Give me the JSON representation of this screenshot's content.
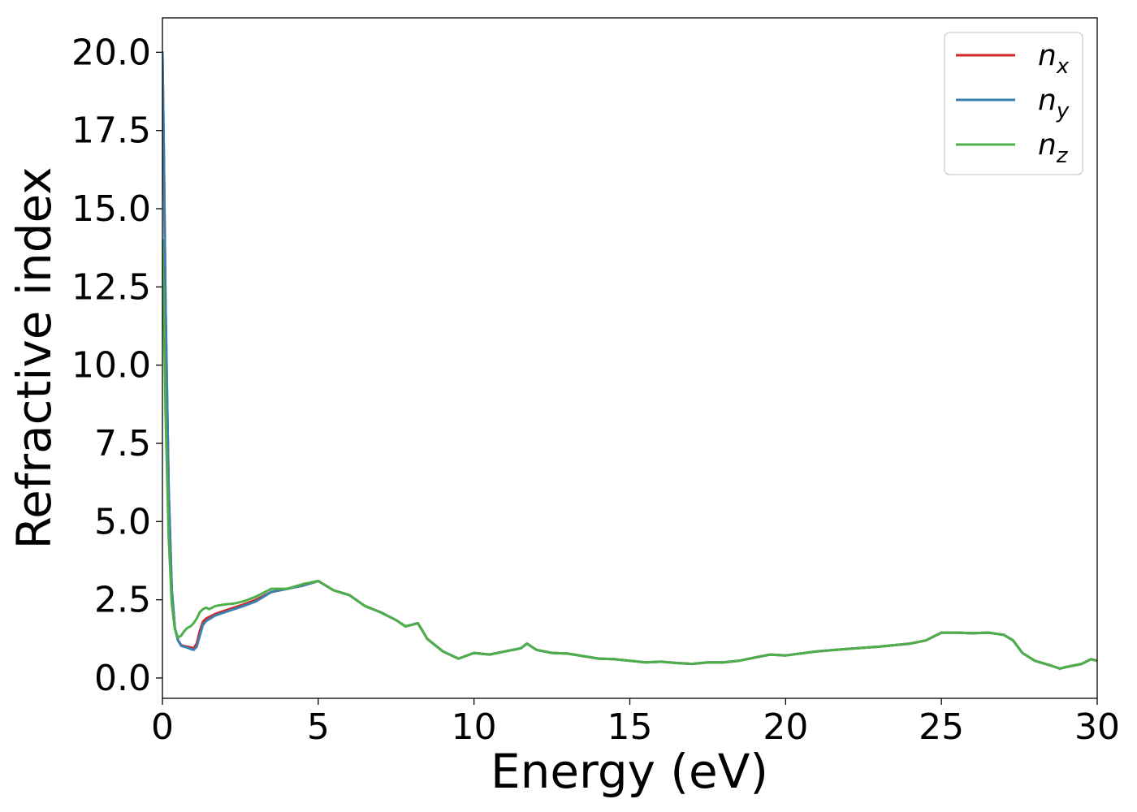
{
  "chart_data": {
    "type": "line",
    "xlabel": "Energy (eV)",
    "ylabel": "Refractive index",
    "xlim": [
      0,
      30
    ],
    "ylim": [
      -0.65,
      21.1
    ],
    "xticks": [
      0,
      5,
      10,
      15,
      20,
      25,
      30
    ],
    "xtick_labels": [
      "0",
      "5",
      "10",
      "15",
      "20",
      "25",
      "30"
    ],
    "yticks": [
      0,
      2.5,
      5,
      7.5,
      10,
      12.5,
      15,
      17.5,
      20
    ],
    "ytick_labels": [
      "0.0",
      "2.5",
      "5.0",
      "7.5",
      "10.0",
      "12.5",
      "15.0",
      "17.5",
      "20.0"
    ],
    "grid": false,
    "legend_position": "top-right",
    "series": [
      {
        "name": "n_x",
        "legend_base": "n",
        "legend_sub": "x",
        "color": "#d62728",
        "x": [
          0.0,
          0.05,
          0.1,
          0.2,
          0.3,
          0.4,
          0.5,
          0.6,
          0.7,
          0.8,
          0.9,
          1.0,
          1.1,
          1.2,
          1.3,
          1.4,
          1.5,
          1.7,
          2.0,
          2.3,
          2.6,
          3.0,
          3.5,
          4.0,
          4.5,
          5.0,
          5.5,
          6.0,
          6.5,
          7.0,
          7.5,
          7.8,
          8.2,
          8.5,
          9.0,
          9.5,
          10.0,
          10.5,
          11.0,
          11.5,
          11.7,
          12.0,
          12.5,
          13.0,
          13.5,
          14.0,
          14.5,
          15.0,
          15.5,
          16.0,
          16.5,
          17.0,
          17.5,
          18.0,
          18.5,
          19.0,
          19.5,
          20.0,
          21.0,
          22.0,
          23.0,
          24.0,
          24.5,
          25.0,
          25.5,
          26.0,
          26.5,
          27.0,
          27.3,
          27.6,
          28.0,
          28.5,
          28.8,
          29.0,
          29.5,
          29.8,
          30.0
        ],
        "y": [
          20.0,
          16.5,
          12.0,
          6.0,
          2.8,
          1.6,
          1.2,
          1.05,
          1.02,
          1.0,
          0.98,
          0.95,
          1.1,
          1.5,
          1.8,
          1.9,
          1.95,
          2.05,
          2.15,
          2.25,
          2.35,
          2.5,
          2.75,
          2.85,
          2.95,
          3.1,
          2.8,
          2.65,
          2.3,
          2.1,
          1.85,
          1.65,
          1.75,
          1.25,
          0.85,
          0.62,
          0.8,
          0.75,
          0.85,
          0.95,
          1.1,
          0.9,
          0.8,
          0.78,
          0.7,
          0.62,
          0.6,
          0.55,
          0.5,
          0.52,
          0.48,
          0.45,
          0.5,
          0.5,
          0.55,
          0.65,
          0.75,
          0.72,
          0.85,
          0.93,
          1.0,
          1.1,
          1.2,
          1.45,
          1.45,
          1.43,
          1.45,
          1.38,
          1.2,
          0.8,
          0.55,
          0.4,
          0.3,
          0.35,
          0.45,
          0.6,
          0.55
        ]
      },
      {
        "name": "n_y",
        "legend_base": "n",
        "legend_sub": "y",
        "color": "#3a7fb0",
        "x": [
          0.0,
          0.05,
          0.1,
          0.2,
          0.3,
          0.4,
          0.5,
          0.6,
          0.7,
          0.8,
          0.9,
          1.0,
          1.1,
          1.2,
          1.3,
          1.4,
          1.5,
          1.7,
          2.0,
          2.3,
          2.6,
          3.0,
          3.5,
          4.0,
          4.5,
          5.0,
          5.5,
          6.0,
          6.5,
          7.0,
          7.5,
          7.8,
          8.2,
          8.5,
          9.0,
          9.5,
          10.0,
          10.5,
          11.0,
          11.5,
          11.7,
          12.0,
          12.5,
          13.0,
          13.5,
          14.0,
          14.5,
          15.0,
          15.5,
          16.0,
          16.5,
          17.0,
          17.5,
          18.0,
          18.5,
          19.0,
          19.5,
          20.0,
          21.0,
          22.0,
          23.0,
          24.0,
          24.5,
          25.0,
          25.5,
          26.0,
          26.5,
          27.0,
          27.3,
          27.6,
          28.0,
          28.5,
          28.8,
          29.0,
          29.5,
          29.8,
          30.0
        ],
        "y": [
          20.0,
          16.5,
          12.0,
          6.0,
          2.8,
          1.6,
          1.2,
          1.03,
          1.0,
          0.97,
          0.93,
          0.9,
          1.0,
          1.35,
          1.7,
          1.82,
          1.88,
          2.0,
          2.1,
          2.2,
          2.3,
          2.45,
          2.75,
          2.85,
          2.95,
          3.1,
          2.8,
          2.65,
          2.3,
          2.1,
          1.85,
          1.65,
          1.75,
          1.25,
          0.85,
          0.62,
          0.8,
          0.75,
          0.85,
          0.95,
          1.1,
          0.9,
          0.8,
          0.78,
          0.7,
          0.62,
          0.6,
          0.55,
          0.5,
          0.52,
          0.48,
          0.45,
          0.5,
          0.5,
          0.55,
          0.65,
          0.75,
          0.72,
          0.85,
          0.93,
          1.0,
          1.1,
          1.2,
          1.45,
          1.45,
          1.43,
          1.45,
          1.38,
          1.2,
          0.8,
          0.55,
          0.4,
          0.3,
          0.35,
          0.45,
          0.6,
          0.55
        ]
      },
      {
        "name": "n_z",
        "legend_base": "n",
        "legend_sub": "z",
        "color": "#4daf4a",
        "x": [
          0.0,
          0.05,
          0.1,
          0.2,
          0.3,
          0.4,
          0.5,
          0.6,
          0.7,
          0.8,
          0.9,
          1.0,
          1.1,
          1.2,
          1.3,
          1.4,
          1.5,
          1.7,
          2.0,
          2.3,
          2.6,
          3.0,
          3.5,
          4.0,
          4.5,
          5.0,
          5.5,
          6.0,
          6.5,
          7.0,
          7.5,
          7.8,
          8.2,
          8.5,
          9.0,
          9.5,
          10.0,
          10.5,
          11.0,
          11.5,
          11.7,
          12.0,
          12.5,
          13.0,
          13.5,
          14.0,
          14.5,
          15.0,
          15.5,
          16.0,
          16.5,
          17.0,
          17.5,
          18.0,
          18.5,
          19.0,
          19.5,
          20.0,
          21.0,
          22.0,
          23.0,
          24.0,
          24.5,
          25.0,
          25.5,
          26.0,
          26.5,
          27.0,
          27.3,
          27.6,
          28.0,
          28.5,
          28.8,
          29.0,
          29.5,
          29.8,
          30.0
        ],
        "y": [
          14.0,
          11.5,
          8.5,
          4.5,
          2.4,
          1.55,
          1.3,
          1.35,
          1.5,
          1.6,
          1.65,
          1.75,
          1.9,
          2.1,
          2.2,
          2.25,
          2.2,
          2.3,
          2.35,
          2.38,
          2.45,
          2.6,
          2.85,
          2.85,
          3.0,
          3.1,
          2.8,
          2.65,
          2.3,
          2.1,
          1.85,
          1.65,
          1.75,
          1.25,
          0.85,
          0.62,
          0.8,
          0.75,
          0.85,
          0.95,
          1.1,
          0.9,
          0.8,
          0.78,
          0.7,
          0.62,
          0.6,
          0.55,
          0.5,
          0.52,
          0.48,
          0.45,
          0.5,
          0.5,
          0.55,
          0.65,
          0.75,
          0.72,
          0.85,
          0.93,
          1.0,
          1.1,
          1.2,
          1.45,
          1.45,
          1.43,
          1.45,
          1.38,
          1.2,
          0.8,
          0.55,
          0.4,
          0.3,
          0.35,
          0.45,
          0.6,
          0.55
        ]
      }
    ]
  }
}
